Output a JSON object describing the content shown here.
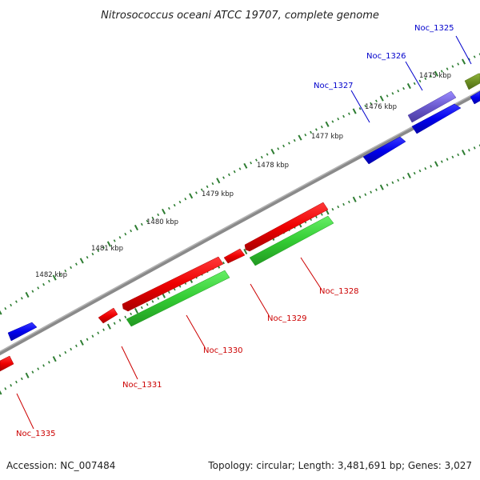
{
  "header": {
    "title": "Nitrosococcus oceani ATCC 19707, complete genome"
  },
  "footer": {
    "accession": "Accession: NC_007484",
    "topology": "Topology: circular; Length: 3,481,691 bp; Genes: 3,027"
  },
  "scale": {
    "ticks": [
      {
        "label": "1475 kbp"
      },
      {
        "label": "1476 kbp"
      },
      {
        "label": "1477 kbp"
      },
      {
        "label": "1478 kbp"
      },
      {
        "label": "1479 kbp"
      },
      {
        "label": "1480 kbp"
      },
      {
        "label": "1481 kbp"
      },
      {
        "label": "1482 kbp"
      }
    ]
  },
  "genes": [
    {
      "label": "Noc_1325",
      "color": "#0000cc"
    },
    {
      "label": "Noc_1326",
      "color": "#0000cc"
    },
    {
      "label": "Noc_1327",
      "color": "#0000cc"
    },
    {
      "label": "Noc_1328",
      "color": "#cc0000"
    },
    {
      "label": "Noc_1329",
      "color": "#cc0000"
    },
    {
      "label": "Noc_1330",
      "color": "#cc0000"
    },
    {
      "label": "Noc_1331",
      "color": "#cc0000"
    },
    {
      "label": "Noc_1335",
      "color": "#cc0000"
    }
  ],
  "colors": {
    "forward_cds": "#0000ee",
    "reverse_cds": "#ee0000",
    "gc_skew_green": "#33cc33",
    "purple": "#6a5acd",
    "olive": "#6b8e23",
    "backbone": "#808080",
    "tick_green": "#2e7d32"
  }
}
